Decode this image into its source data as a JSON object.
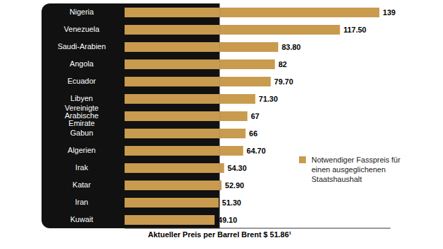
{
  "chart_data": {
    "type": "bar",
    "orientation": "horizontal",
    "categories": [
      "Nigeria",
      "Venezuela",
      "Saudi-Arabien",
      "Angola",
      "Ecuador",
      "Libyen",
      "Vereinigte Arabische Emirate",
      "Gabun",
      "Algerien",
      "Irak",
      "Katar",
      "Iran",
      "Kuwait"
    ],
    "series": [
      {
        "name": "Notwendiger Fasspreis für einen ausgeglichenen Staatshaushalt",
        "color": "#c99b4f",
        "values": [
          139,
          117.5,
          83.8,
          82,
          79.7,
          71.3,
          67,
          66,
          64.7,
          54.3,
          52.9,
          51.3,
          49.1
        ],
        "value_labels": [
          "139",
          "117.50",
          "83.80",
          "82",
          "79.70",
          "71.30",
          "67",
          "66",
          "64.70",
          "54.30",
          "52.90",
          "51.30",
          "49.10"
        ]
      }
    ],
    "xlim": [
      0,
      145
    ],
    "xticks": [],
    "tick_labels": "y",
    "grid": false,
    "data_labels": true,
    "legend": "right",
    "annotations": [
      {
        "text": "Aktueller Preis per Barrel Brent $ 51.86¹",
        "x": 51.86
      }
    ]
  }
}
